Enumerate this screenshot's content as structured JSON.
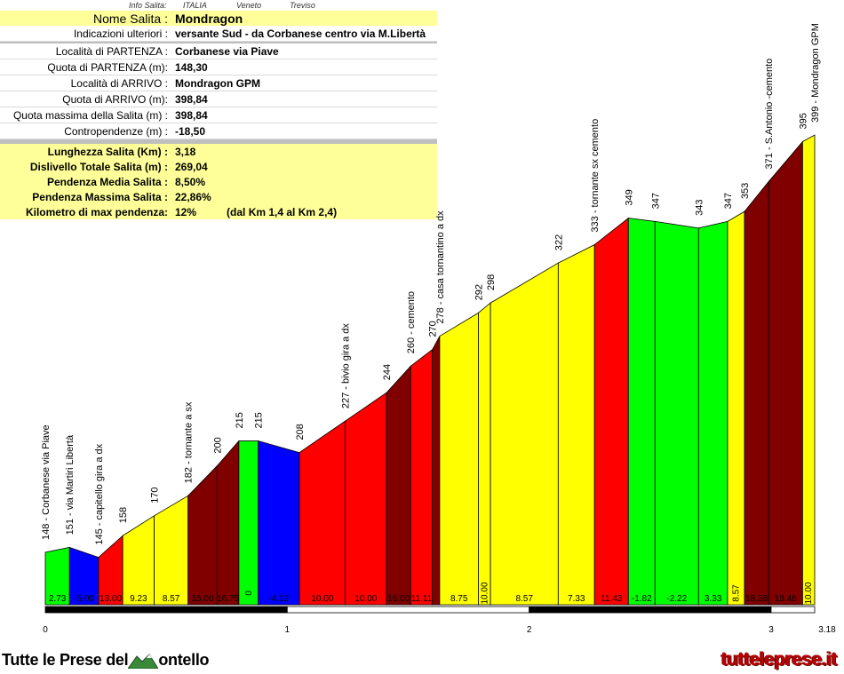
{
  "info_top": {
    "label": "Info Salita:",
    "country": "ITALIA",
    "region": "Veneto",
    "province": "Treviso"
  },
  "info": {
    "nome_label": "Nome Salita :",
    "nome": "Mondragon",
    "indicazioni_label": "Indicazioni ulteriori :",
    "indicazioni": "versante Sud - da Corbanese centro via M.Libertà",
    "partenza_label": "Località di PARTENZA :",
    "partenza": "Corbanese via Piave",
    "quota_partenza_label": "Quota di PARTENZA (m):",
    "quota_partenza": "148,30",
    "arrivo_label": "Località di ARRIVO :",
    "arrivo": "Mondragon GPM",
    "quota_arrivo_label": "Quota di ARRIVO (m):",
    "quota_arrivo": "398,84",
    "quota_max_label": "Quota massima della Salita (m) :",
    "quota_max": "398,84",
    "contropendenze_label": "Contropendenze (m) :",
    "contropendenze": "-18,50",
    "lunghezza_label": "Lunghezza Salita (Km) :",
    "lunghezza": "3,18",
    "dislivello_label": "Dislivello Totale Salita (m) :",
    "dislivello": "269,04",
    "pend_media_label": "Pendenza Media Salita :",
    "pend_media": "8,50%",
    "pend_max_label": "Pendenza Massima Salita :",
    "pend_max": "22,86%",
    "km_max_label": "Kilometro di max pendenza:",
    "km_max": "12%",
    "km_max_range": "(dal Km 1,4 al Km 2,4)"
  },
  "brand": {
    "left": "Tutte le Prese del",
    "left_tail": "ontello",
    "right": "tutteleprese.it"
  },
  "colors": {
    "yellow": "#ffff00",
    "red": "#ff0000",
    "darkred": "#800000",
    "green": "#00ff00",
    "blue": "#0000ff"
  },
  "chart_data": {
    "type": "area",
    "xlim": [
      0,
      3.18
    ],
    "x_ticks": [
      {
        "x": 0,
        "label": "0"
      },
      {
        "x": 1,
        "label": "1"
      },
      {
        "x": 2,
        "label": "2"
      },
      {
        "x": 3,
        "label": "3"
      },
      {
        "x": 3.18,
        "label": "3.18"
      }
    ],
    "profile": [
      {
        "x": 0.0,
        "elev": 148,
        "label": "148 - Corbanese via Piave"
      },
      {
        "x": 0.1,
        "elev": 151,
        "label": "151 - via Martiri Libertà"
      },
      {
        "x": 0.22,
        "elev": 145,
        "label": "145 - capitello gira a dx"
      },
      {
        "x": 0.32,
        "elev": 158,
        "label": "158"
      },
      {
        "x": 0.45,
        "elev": 170,
        "label": "170"
      },
      {
        "x": 0.59,
        "elev": 182,
        "label": "182 - tornante a sx"
      },
      {
        "x": 0.71,
        "elev": 200,
        "label": "200"
      },
      {
        "x": 0.8,
        "elev": 215,
        "label": "215"
      },
      {
        "x": 0.88,
        "elev": 215,
        "label": "215"
      },
      {
        "x": 1.05,
        "elev": 208,
        "label": "208"
      },
      {
        "x": 1.24,
        "elev": 227,
        "label": "227 - bivio gira a dx"
      },
      {
        "x": 1.41,
        "elev": 244,
        "label": "244"
      },
      {
        "x": 1.51,
        "elev": 260,
        "label": "260 - cemento"
      },
      {
        "x": 1.6,
        "elev": 270,
        "label": "270"
      },
      {
        "x": 1.63,
        "elev": 278,
        "label": "278 - casa tornantino a dx"
      },
      {
        "x": 1.79,
        "elev": 292,
        "label": "292"
      },
      {
        "x": 1.84,
        "elev": 298,
        "label": "298"
      },
      {
        "x": 2.12,
        "elev": 322,
        "label": "322"
      },
      {
        "x": 2.27,
        "elev": 333,
        "label": "333 - tornante sx cemento"
      },
      {
        "x": 2.41,
        "elev": 349,
        "label": "349"
      },
      {
        "x": 2.52,
        "elev": 347,
        "label": "347"
      },
      {
        "x": 2.7,
        "elev": 343,
        "label": "343"
      },
      {
        "x": 2.82,
        "elev": 347,
        "label": "347"
      },
      {
        "x": 2.89,
        "elev": 353,
        "label": "353"
      },
      {
        "x": 2.99,
        "elev": 371,
        "label": "371 - S.Antonio -cemento"
      },
      {
        "x": 3.13,
        "elev": 395,
        "label": "395"
      },
      {
        "x": 3.18,
        "elev": 399,
        "label": "399 - Mondragon GPM"
      }
    ],
    "segments": [
      {
        "grade": "2.73",
        "color": "green"
      },
      {
        "grade": "-5.00",
        "color": "blue"
      },
      {
        "grade": "13.00",
        "color": "red"
      },
      {
        "grade": "9.23",
        "color": "yellow"
      },
      {
        "grade": "8.57",
        "color": "yellow"
      },
      {
        "grade": "15.00",
        "color": "darkred"
      },
      {
        "grade": "16.75",
        "color": "darkred"
      },
      {
        "grade": "0",
        "color": "green"
      },
      {
        "grade": "-4.12",
        "color": "blue"
      },
      {
        "grade": "10.00",
        "color": "red"
      },
      {
        "grade": "10.00",
        "color": "red"
      },
      {
        "grade": "16.00",
        "color": "darkred"
      },
      {
        "grade": "11.11",
        "color": "red"
      },
      {
        "grade": "",
        "color": "darkred"
      },
      {
        "grade": "8.75",
        "color": "yellow"
      },
      {
        "grade": "10.00",
        "color": "yellow"
      },
      {
        "grade": "8.57",
        "color": "yellow"
      },
      {
        "grade": "7.33",
        "color": "yellow"
      },
      {
        "grade": "11.43",
        "color": "red"
      },
      {
        "grade": "-1.82",
        "color": "green"
      },
      {
        "grade": "-2.22",
        "color": "green"
      },
      {
        "grade": "3.33",
        "color": "green"
      },
      {
        "grade": "8.57",
        "color": "yellow"
      },
      {
        "grade": "18.38",
        "color": "darkred"
      },
      {
        "grade": "18.46",
        "color": "darkred"
      },
      {
        "grade": "10.00",
        "color": "yellow"
      }
    ]
  }
}
